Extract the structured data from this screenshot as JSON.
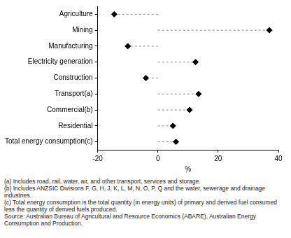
{
  "chart_data": {
    "type": "dot",
    "orientation": "horizontal",
    "marker": "diamond",
    "line_style": "dashed",
    "categories": [
      "Agriculture",
      "Mining",
      "Manufacturing",
      "Electricity generation",
      "Construction",
      "Transport(a)",
      "Commercial(b)",
      "Residential",
      "Total energy consumption(c)"
    ],
    "values": [
      -14.5,
      37,
      -10,
      12.5,
      -4,
      13.5,
      10.5,
      5,
      6
    ],
    "color": "#000000",
    "x_label": "%",
    "xlim": [
      -20,
      40
    ],
    "xticks": [
      -20,
      0,
      20,
      40
    ],
    "grid": false
  },
  "notes": [
    "(a) Includes road, rail, water, air, and other transport, services and storage.",
    "(b) Includes ANZSIC Divisions F, G, H, J, K, L, M, N, O, P, Q and the water, sewerage and drainage industries.",
    "(c) Total energy consumption is the total quantity (in energy units) of primary and derived fuel consumed less the quantity of derived fuels produced."
  ],
  "source": "Source: Australian Bureau of Agricultural and Resource Economics (ABARE), Australian Energy Consumption and Production."
}
